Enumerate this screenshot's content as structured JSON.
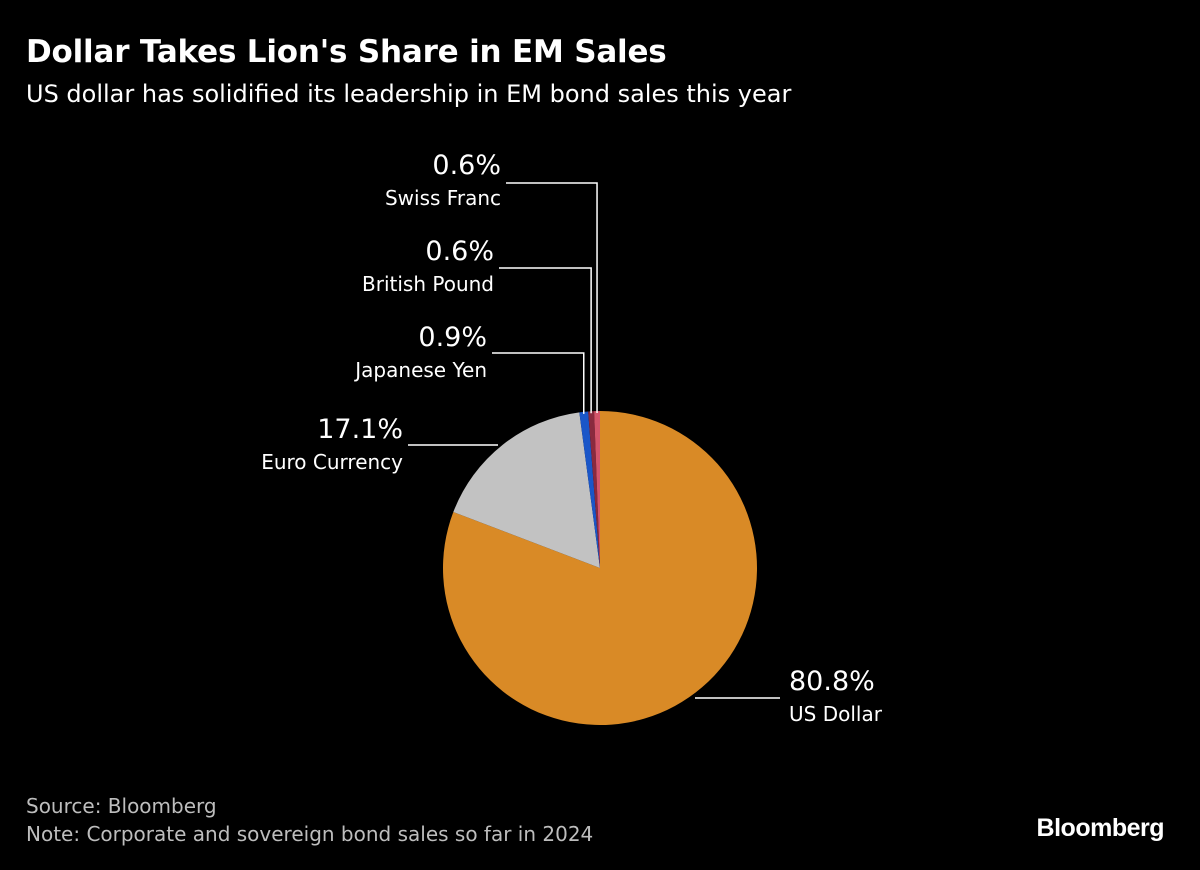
{
  "header": {
    "title": "Dollar Takes Lion's Share in EM Sales",
    "subtitle": "US dollar has solidified its leadership in EM bond sales this year"
  },
  "chart_data": {
    "type": "pie",
    "slices": [
      {
        "label": "US Dollar",
        "value": 80.8,
        "value_label": "80.8%",
        "color": "#d98a26"
      },
      {
        "label": "Euro Currency",
        "value": 17.1,
        "value_label": "17.1%",
        "color": "#c2c2c2"
      },
      {
        "label": "Japanese Yen",
        "value": 0.9,
        "value_label": "0.9%",
        "color": "#1a56c8"
      },
      {
        "label": "British Pound",
        "value": 0.6,
        "value_label": "0.6%",
        "color": "#8a2a3e"
      },
      {
        "label": "Swiss Franc",
        "value": 0.6,
        "value_label": "0.6%",
        "color": "#d4556a"
      }
    ],
    "start_angle": "top",
    "direction": "clockwise"
  },
  "footer": {
    "source": "Source: Bloomberg",
    "note": "Note: Corporate and sovereign bond sales so far in 2024",
    "brand": "Bloomberg"
  },
  "colors": {
    "background": "#000000",
    "text": "#ffffff",
    "footer_text": "#bdbdbd",
    "leader_line": "#ffffff"
  }
}
